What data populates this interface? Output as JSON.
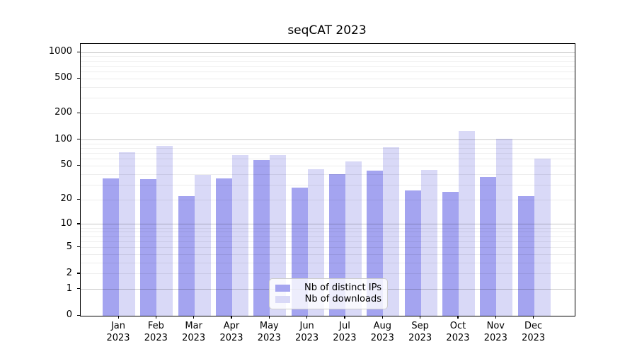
{
  "title": "seqCAT 2023",
  "chart_data": {
    "type": "bar",
    "title": "seqCAT 2023",
    "months": [
      "Jan",
      "Feb",
      "Mar",
      "Apr",
      "May",
      "Jun",
      "Jul",
      "Aug",
      "Sep",
      "Oct",
      "Nov",
      "Dec"
    ],
    "year": "2023",
    "series": [
      {
        "name": "Nb of distinct IPs",
        "color": "#a4a4f0",
        "values": [
          36,
          35,
          22,
          36,
          58,
          28,
          40,
          44,
          26,
          25,
          37,
          22
        ]
      },
      {
        "name": "Nb of downloads",
        "color": "#d9d9f7",
        "values": [
          72,
          85,
          39,
          67,
          67,
          46,
          56,
          82,
          45,
          126,
          103,
          61
        ]
      }
    ],
    "y_scale": "log10(1+v)",
    "ylim": [
      0,
      1250
    ],
    "y_ticks": [
      0,
      1,
      2,
      5,
      10,
      20,
      50,
      100,
      200,
      500,
      1000
    ],
    "y_major_gridlines": [
      1,
      10,
      100,
      1000
    ],
    "y_minor_gridlines": [
      2,
      3,
      4,
      5,
      6,
      7,
      8,
      9,
      20,
      30,
      40,
      50,
      60,
      70,
      80,
      90,
      200,
      300,
      400,
      500,
      600,
      700,
      800,
      900
    ],
    "grid": true,
    "legend_position": "lower center",
    "xlabel": "",
    "ylabel": ""
  }
}
